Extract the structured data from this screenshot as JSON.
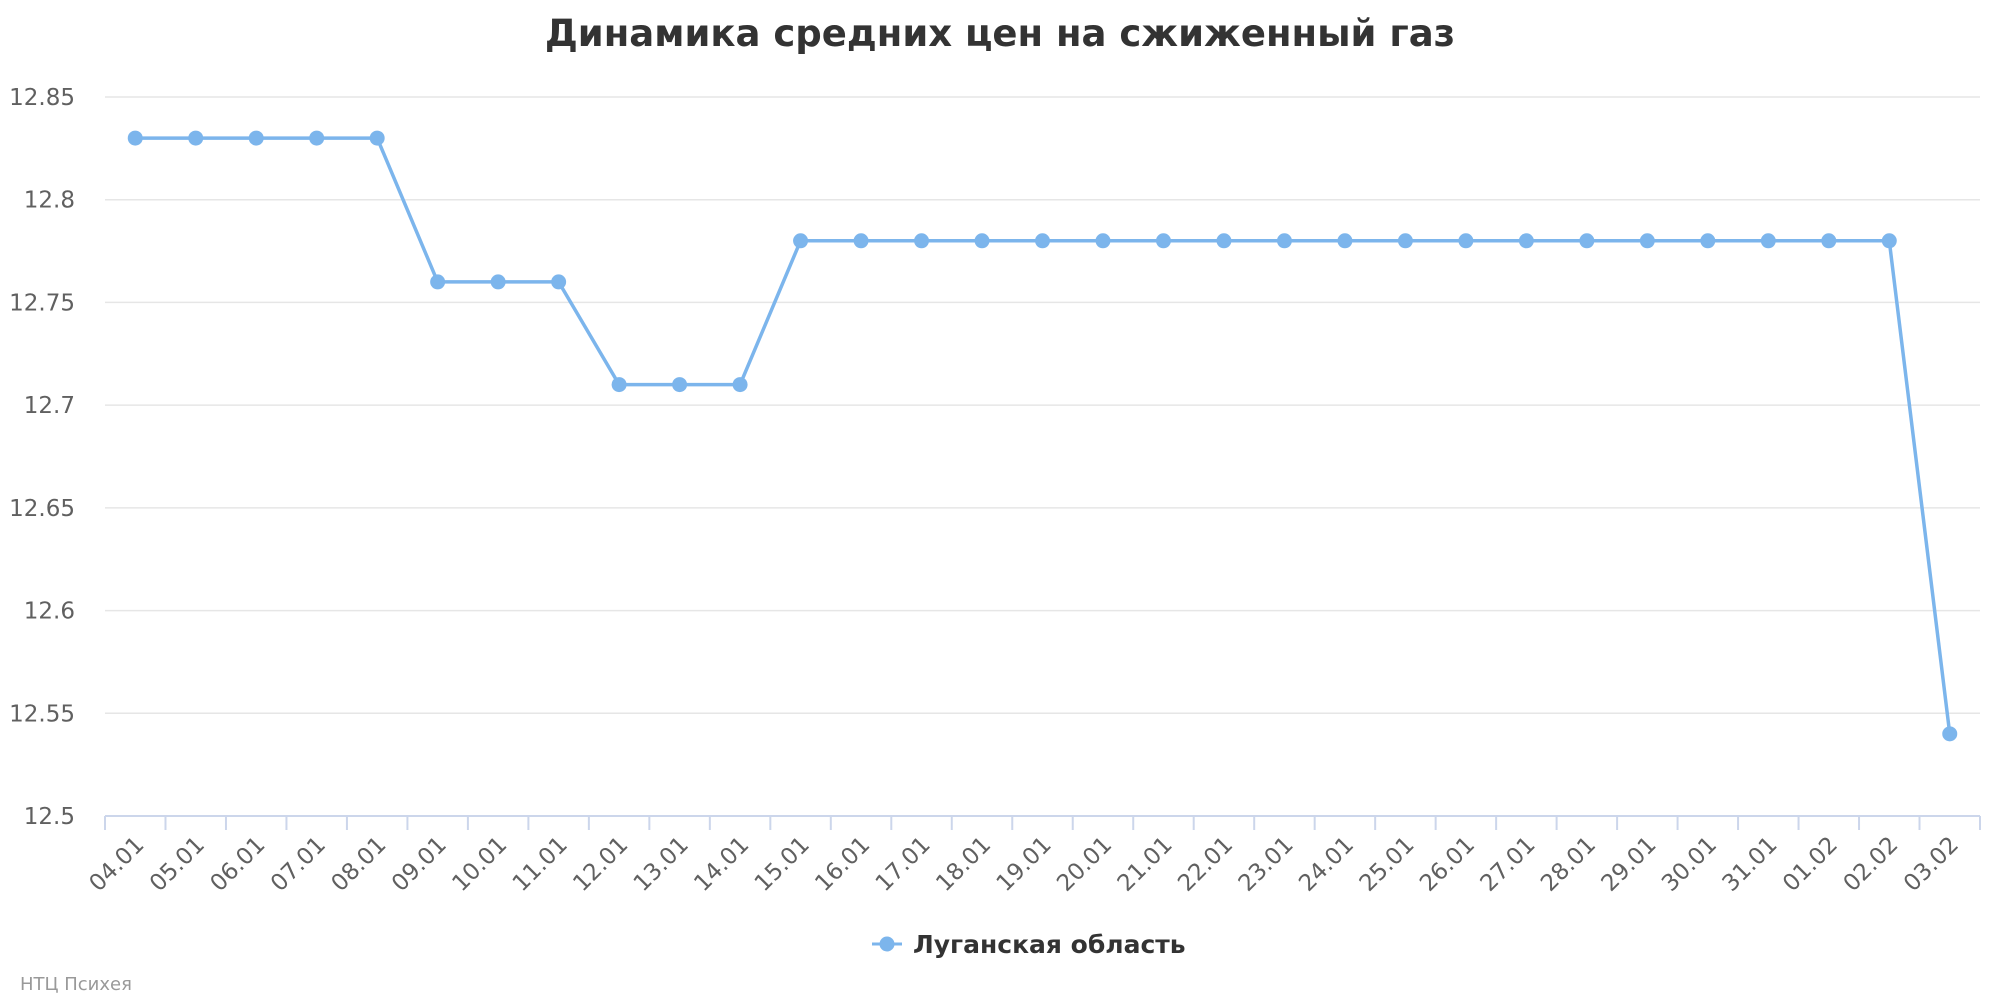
{
  "chart_data": {
    "type": "line",
    "title": "Динамика средних цен на сжиженный газ",
    "categories": [
      "04.01",
      "05.01",
      "06.01",
      "07.01",
      "08.01",
      "09.01",
      "10.01",
      "11.01",
      "12.01",
      "13.01",
      "14.01",
      "15.01",
      "16.01",
      "17.01",
      "18.01",
      "19.01",
      "20.01",
      "21.01",
      "22.01",
      "23.01",
      "24.01",
      "25.01",
      "26.01",
      "27.01",
      "28.01",
      "29.01",
      "30.01",
      "31.01",
      "01.02",
      "02.02",
      "03.02"
    ],
    "series": [
      {
        "name": "Луганская область",
        "color": "#7cb5ec",
        "values": [
          12.83,
          12.83,
          12.83,
          12.83,
          12.83,
          12.76,
          12.76,
          12.76,
          12.71,
          12.71,
          12.71,
          12.78,
          12.78,
          12.78,
          12.78,
          12.78,
          12.78,
          12.78,
          12.78,
          12.78,
          12.78,
          12.78,
          12.78,
          12.78,
          12.78,
          12.78,
          12.78,
          12.78,
          12.78,
          12.78,
          12.54
        ]
      }
    ],
    "yticks": [
      "12.5",
      "12.55",
      "12.6",
      "12.65",
      "12.7",
      "12.75",
      "12.8",
      "12.85"
    ],
    "ylim": [
      12.5,
      12.85
    ],
    "grid": true,
    "legend_position": "bottom-center"
  },
  "credits": "НТЦ Психея"
}
